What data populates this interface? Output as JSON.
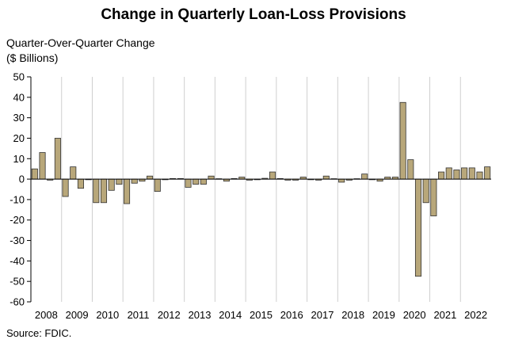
{
  "chart_data": {
    "type": "bar",
    "title": "Change in Quarterly Loan-Loss Provisions",
    "ylabel_lines": [
      "Quarter-Over-Quarter Change",
      "($ Billions)"
    ],
    "source": "Source: FDIC.",
    "ylim": [
      -60,
      50
    ],
    "y_ticks": [
      50,
      40,
      30,
      20,
      10,
      0,
      -10,
      -20,
      -30,
      -40,
      -50,
      -60
    ],
    "year_labels": [
      "2008",
      "2009",
      "2010",
      "2011",
      "2012",
      "2013",
      "2014",
      "2015",
      "2016",
      "2017",
      "2018",
      "2019",
      "2020",
      "2021",
      "2022"
    ],
    "grid": "vertical lines at year boundaries",
    "bar_color": "#b8a77a",
    "bar_edge": "#333333",
    "values": [
      5.0,
      13.0,
      -0.5,
      20.0,
      -8.5,
      6.0,
      -4.5,
      -0.3,
      -11.5,
      -11.5,
      -5.5,
      -2.5,
      -12.0,
      -2.0,
      -1.0,
      1.5,
      -6.0,
      -0.3,
      0.3,
      0.3,
      -4.0,
      -2.5,
      -2.5,
      1.5,
      0.2,
      -1.0,
      0.3,
      1.0,
      -0.5,
      -0.3,
      0.4,
      3.5,
      0.3,
      -0.5,
      -0.5,
      1.0,
      -0.3,
      -0.5,
      1.5,
      0.2,
      -1.5,
      -0.5,
      0.2,
      2.5,
      -0.3,
      -1.0,
      1.0,
      1.0,
      37.5,
      9.5,
      -47.5,
      -11.5,
      -18.0,
      3.5,
      5.5,
      4.5,
      5.5,
      5.5,
      3.5,
      6.0
    ]
  }
}
